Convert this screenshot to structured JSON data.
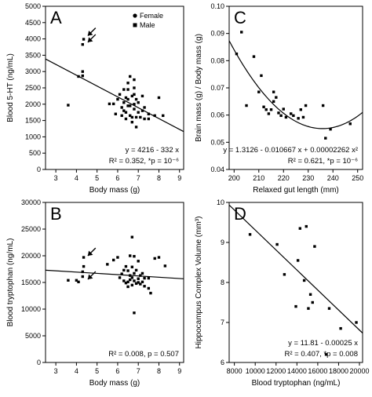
{
  "chart_data": [
    {
      "panel": "A",
      "type": "scatter",
      "xlabel": "Body mass (g)",
      "ylabel": "Blood 5-HT (ng/mL)",
      "xlim": [
        2.5,
        9.2
      ],
      "ylim": [
        0,
        5000
      ],
      "xticks": [
        3,
        4,
        5,
        6,
        7,
        8,
        9
      ],
      "yticks": [
        0,
        500,
        1000,
        1500,
        2000,
        2500,
        3000,
        3500,
        4000,
        4500,
        5000
      ],
      "legend": {
        "position": "top-right",
        "entries": [
          {
            "label": "Female",
            "marker": "circle"
          },
          {
            "label": "Male",
            "marker": "square"
          }
        ]
      },
      "equation": "y = 4216 - 332 x",
      "stat_line": "R² = 0.352, *p = 10⁻⁶",
      "fit": {
        "intercept": 4216,
        "slope": -332
      },
      "arrows": [
        {
          "x": 4.4,
          "y": 4050
        },
        {
          "x": 4.4,
          "y": 3850
        }
      ],
      "points": [
        [
          3.6,
          1970
        ],
        [
          4.1,
          2850
        ],
        [
          4.3,
          2870
        ],
        [
          4.3,
          3000
        ],
        [
          4.3,
          3830
        ],
        [
          4.35,
          3990
        ],
        [
          5.6,
          2010
        ],
        [
          5.8,
          2010
        ],
        [
          5.9,
          1700
        ],
        [
          6.0,
          2150
        ],
        [
          6.1,
          2300
        ],
        [
          6.2,
          1900
        ],
        [
          6.2,
          1650
        ],
        [
          6.3,
          2050
        ],
        [
          6.3,
          1800
        ],
        [
          6.3,
          2450
        ],
        [
          6.4,
          2200
        ],
        [
          6.4,
          1750
        ],
        [
          6.4,
          1550
        ],
        [
          6.5,
          2650
        ],
        [
          6.5,
          2450
        ],
        [
          6.5,
          2150
        ],
        [
          6.5,
          1950
        ],
        [
          6.6,
          2850
        ],
        [
          6.6,
          1950
        ],
        [
          6.6,
          1650
        ],
        [
          6.7,
          2250
        ],
        [
          6.7,
          1600
        ],
        [
          6.7,
          1450
        ],
        [
          6.8,
          2750
        ],
        [
          6.8,
          2500
        ],
        [
          6.8,
          2300
        ],
        [
          6.8,
          2000
        ],
        [
          6.8,
          1850
        ],
        [
          6.9,
          2150
        ],
        [
          6.9,
          1600
        ],
        [
          6.9,
          1300
        ],
        [
          7.0,
          2050
        ],
        [
          7.0,
          1750
        ],
        [
          7.1,
          1600
        ],
        [
          7.2,
          2250
        ],
        [
          7.2,
          1800
        ],
        [
          7.3,
          1900
        ],
        [
          7.3,
          1550
        ],
        [
          7.5,
          1700
        ],
        [
          7.5,
          1550
        ],
        [
          7.8,
          1650
        ],
        [
          8.0,
          2200
        ],
        [
          8.2,
          1650
        ]
      ]
    },
    {
      "panel": "B",
      "type": "scatter",
      "xlabel": "Body mass (g)",
      "ylabel": "Blood tryptophan (ng/mL)",
      "xlim": [
        2.5,
        9.2
      ],
      "ylim": [
        0,
        30000
      ],
      "xticks": [
        3,
        4,
        5,
        6,
        7,
        8,
        9
      ],
      "yticks": [
        0,
        5000,
        10000,
        15000,
        20000,
        25000,
        30000
      ],
      "stat_line": "R² = 0.008, p = 0.507",
      "fit": {
        "intercept": 17900,
        "slope": -240
      },
      "arrows": [
        {
          "x": 4.4,
          "y": 19700
        },
        {
          "x": 4.4,
          "y": 15300
        }
      ],
      "points": [
        [
          3.6,
          15400
        ],
        [
          4.0,
          15400
        ],
        [
          4.1,
          15100
        ],
        [
          4.3,
          16100
        ],
        [
          4.3,
          17000
        ],
        [
          4.35,
          18000
        ],
        [
          4.35,
          19700
        ],
        [
          5.5,
          18400
        ],
        [
          5.8,
          19200
        ],
        [
          6.0,
          19700
        ],
        [
          6.1,
          15900
        ],
        [
          6.2,
          16600
        ],
        [
          6.3,
          17300
        ],
        [
          6.3,
          15300
        ],
        [
          6.4,
          18000
        ],
        [
          6.4,
          14900
        ],
        [
          6.5,
          17200
        ],
        [
          6.5,
          15100
        ],
        [
          6.5,
          14200
        ],
        [
          6.6,
          20000
        ],
        [
          6.6,
          16300
        ],
        [
          6.6,
          15500
        ],
        [
          6.7,
          23500
        ],
        [
          6.7,
          17900
        ],
        [
          6.7,
          15900
        ],
        [
          6.7,
          14500
        ],
        [
          6.8,
          19900
        ],
        [
          6.8,
          16700
        ],
        [
          6.8,
          15300
        ],
        [
          6.8,
          9300
        ],
        [
          6.9,
          17300
        ],
        [
          6.9,
          14800
        ],
        [
          7.0,
          19000
        ],
        [
          7.0,
          15700
        ],
        [
          7.0,
          15000
        ],
        [
          7.1,
          16300
        ],
        [
          7.1,
          14700
        ],
        [
          7.2,
          16700
        ],
        [
          7.2,
          15100
        ],
        [
          7.3,
          15800
        ],
        [
          7.3,
          14300
        ],
        [
          7.5,
          15800
        ],
        [
          7.5,
          13900
        ],
        [
          7.6,
          13000
        ],
        [
          7.8,
          19500
        ],
        [
          8.0,
          19700
        ],
        [
          8.3,
          18100
        ]
      ]
    },
    {
      "panel": "C",
      "type": "scatter",
      "xlabel": "Relaxed gut length (mm)",
      "ylabel": "Brain mass (g) / Body mass (g)",
      "xlim": [
        198,
        252
      ],
      "ylim": [
        0.04,
        0.1
      ],
      "xticks": [
        200,
        210,
        220,
        230,
        240,
        250
      ],
      "yticks": [
        0.04,
        0.05,
        0.06,
        0.07,
        0.08,
        0.09,
        0.1
      ],
      "equation": "y = 1.3126 - 0.010667 x + 0.00002262 x²",
      "stat_line": "R² = 0.621, *p = 10⁻⁶",
      "fit": {
        "a": 1.3126,
        "b": -0.010667,
        "c": 2.262e-05
      },
      "points": [
        [
          201,
          0.0825
        ],
        [
          203,
          0.0905
        ],
        [
          205,
          0.0635
        ],
        [
          208,
          0.0815
        ],
        [
          210,
          0.0685
        ],
        [
          211,
          0.0745
        ],
        [
          212,
          0.063
        ],
        [
          213,
          0.062
        ],
        [
          214,
          0.0605
        ],
        [
          215,
          0.062
        ],
        [
          216,
          0.065
        ],
        [
          216,
          0.0685
        ],
        [
          217,
          0.0665
        ],
        [
          218,
          0.0608
        ],
        [
          219,
          0.0598
        ],
        [
          220,
          0.0622
        ],
        [
          221,
          0.0592
        ],
        [
          223,
          0.0605
        ],
        [
          224,
          0.0598
        ],
        [
          226,
          0.0588
        ],
        [
          227,
          0.062
        ],
        [
          228,
          0.0592
        ],
        [
          229,
          0.0635
        ],
        [
          236,
          0.0635
        ],
        [
          237,
          0.0515
        ],
        [
          239,
          0.0548
        ],
        [
          247,
          0.0568
        ]
      ]
    },
    {
      "panel": "D",
      "type": "scatter",
      "xlabel": "Blood tryptophan (ng/mL)",
      "ylabel": "Hippocampus Complex Volume (mm³)",
      "xlim": [
        7500,
        20300
      ],
      "ylim": [
        6,
        10
      ],
      "xticks": [
        8000,
        10000,
        12000,
        14000,
        16000,
        18000,
        20000
      ],
      "yticks": [
        6,
        7,
        8,
        9,
        10
      ],
      "equation": "y = 11.81 - 0.00025 x",
      "stat_line": "R² = 0.407, *p = 0.008",
      "fit": {
        "intercept": 11.81,
        "slope": -0.00025
      },
      "points": [
        [
          9500,
          9.2
        ],
        [
          12100,
          8.95
        ],
        [
          12800,
          8.2
        ],
        [
          13900,
          7.4
        ],
        [
          14100,
          8.55
        ],
        [
          14300,
          9.35
        ],
        [
          14700,
          8.05
        ],
        [
          14900,
          9.4
        ],
        [
          15100,
          7.35
        ],
        [
          15300,
          7.7
        ],
        [
          15500,
          7.5
        ],
        [
          15700,
          8.9
        ],
        [
          16800,
          6.2
        ],
        [
          17100,
          7.35
        ],
        [
          18200,
          6.85
        ],
        [
          19700,
          7.0
        ]
      ]
    }
  ]
}
